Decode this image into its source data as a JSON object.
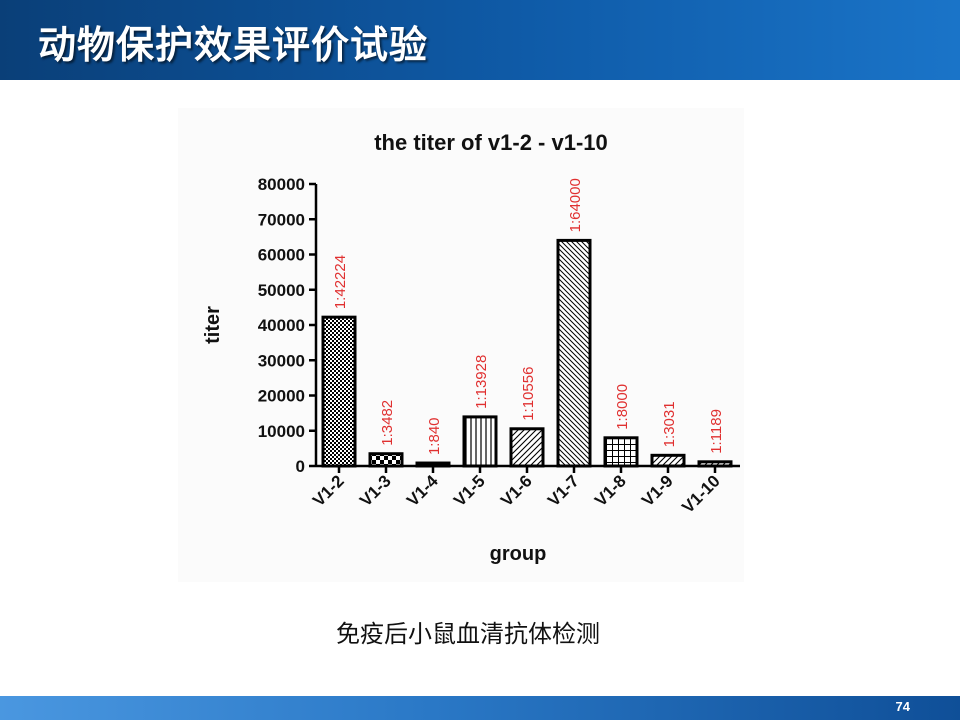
{
  "slide": {
    "title": "动物保护效果评价试验",
    "caption": "免疫后小鼠血清抗体检测",
    "page_number": "74"
  },
  "colors": {
    "header": "#0f5ba8",
    "label_red": "#e03030",
    "bar_stroke": "#000000"
  },
  "chart_data": {
    "type": "bar",
    "title": "the titer of v1-2  -  v1-10",
    "xlabel": "group",
    "ylabel": "titer",
    "ylim": [
      0,
      80000
    ],
    "yticks": [
      "0",
      "10000",
      "20000",
      "30000",
      "40000",
      "50000",
      "60000",
      "70000",
      "80000"
    ],
    "categories": [
      "V1-2",
      "V1-3",
      "V1-4",
      "V1-5",
      "V1-6",
      "V1-7",
      "V1-8",
      "V1-9",
      "V1-10"
    ],
    "values": [
      42224,
      3482,
      840,
      13928,
      10556,
      64000,
      8000,
      3031,
      1189
    ],
    "data_labels": [
      "1:42224",
      "1:3482",
      "1:840",
      "1:13928",
      "1:10556",
      "1:64000",
      "1:8000",
      "1:3031",
      "1:1189"
    ],
    "patterns": [
      "checker-fine",
      "checker-coarse",
      "checker-fine",
      "vertical",
      "diagonal-up",
      "diagonal-down",
      "grid",
      "diagonal-up",
      "diagonal-up"
    ],
    "grid": false,
    "legend": "none"
  }
}
